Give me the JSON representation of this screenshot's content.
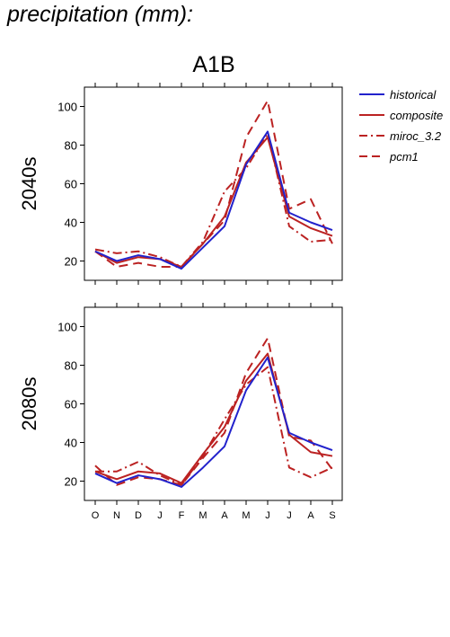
{
  "page_title": "precipitation (mm):",
  "scenario": "A1B",
  "colors": {
    "historical": "#2222cc",
    "composite": "#bb2222",
    "miroc_3.2": "#bb2222",
    "pcm1": "#bb2222"
  },
  "legend": [
    {
      "name": "historical",
      "color": "#2222cc",
      "style": "solid"
    },
    {
      "name": "composite",
      "color": "#bb2222",
      "style": "solid"
    },
    {
      "name": "miroc_3.2",
      "color": "#bb2222",
      "style": "dashdot"
    },
    {
      "name": "pcm1",
      "color": "#bb2222",
      "style": "dashed"
    }
  ],
  "chart_data": [
    {
      "type": "line",
      "panel_label": "2040s",
      "x": [
        "O",
        "N",
        "D",
        "J",
        "F",
        "M",
        "A",
        "M",
        "J",
        "J",
        "A",
        "S"
      ],
      "ylim": [
        10,
        110
      ],
      "yticks": [
        20,
        40,
        60,
        80,
        100
      ],
      "series": [
        {
          "name": "historical",
          "values": [
            25,
            20,
            23,
            21,
            16,
            27,
            38,
            70,
            87,
            45,
            40,
            36
          ]
        },
        {
          "name": "composite",
          "values": [
            25,
            19,
            22,
            21,
            17,
            29,
            43,
            71,
            84,
            43,
            37,
            33
          ]
        },
        {
          "name": "miroc_3.2",
          "values": [
            26,
            24,
            25,
            22,
            17,
            30,
            56,
            68,
            86,
            38,
            30,
            31
          ]
        },
        {
          "name": "pcm1",
          "values": [
            25,
            17,
            19,
            17,
            17,
            29,
            41,
            84,
            103,
            47,
            52,
            29
          ]
        }
      ]
    },
    {
      "type": "line",
      "panel_label": "2080s",
      "x": [
        "O",
        "N",
        "D",
        "J",
        "F",
        "M",
        "A",
        "M",
        "J",
        "J",
        "A",
        "S"
      ],
      "ylim": [
        10,
        110
      ],
      "yticks": [
        20,
        40,
        60,
        80,
        100
      ],
      "series": [
        {
          "name": "historical",
          "values": [
            24,
            19,
            23,
            21,
            17,
            27,
            38,
            67,
            84,
            45,
            40,
            36
          ]
        },
        {
          "name": "composite",
          "values": [
            25,
            21,
            25,
            24,
            19,
            34,
            48,
            72,
            86,
            44,
            35,
            33
          ]
        },
        {
          "name": "miroc_3.2",
          "values": [
            25,
            25,
            30,
            23,
            18,
            33,
            52,
            70,
            79,
            27,
            22,
            27
          ]
        },
        {
          "name": "pcm1",
          "values": [
            28,
            18,
            22,
            21,
            18,
            32,
            45,
            76,
            94,
            43,
            41,
            26
          ]
        }
      ]
    }
  ]
}
